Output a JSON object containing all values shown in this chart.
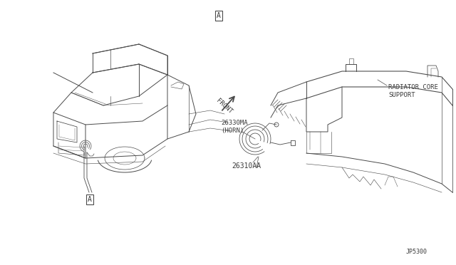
{
  "bg_color": "#ffffff",
  "line_color": "#4a4a4a",
  "text_color": "#3a3a3a",
  "page_ref": "JP5300",
  "label_A": "A",
  "label_radiator": "RADIATOR CORE\nSUPPORT",
  "label_front": "FRONT",
  "label_part1": "26330MA\n(HORN)",
  "label_part2": "26310AA",
  "fig_width": 6.4,
  "fig_height": 3.72,
  "dpi": 100
}
